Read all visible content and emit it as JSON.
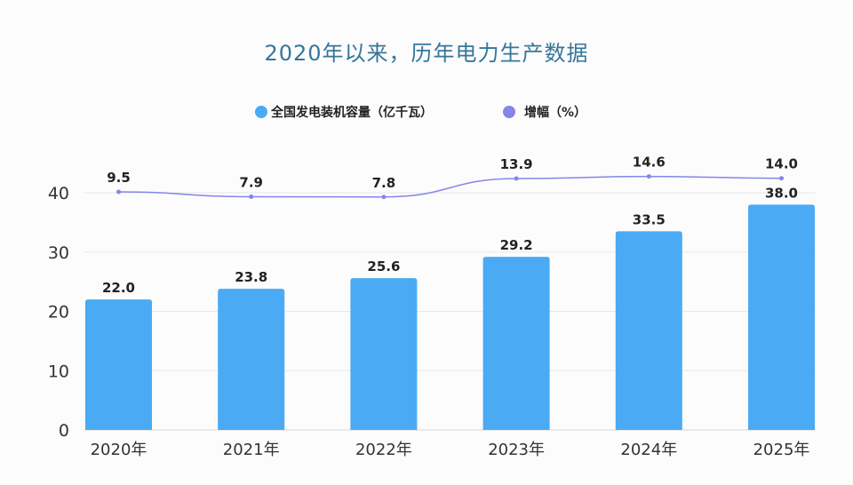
{
  "chart_data": {
    "type": "bar+line",
    "title": "2020年以来，历年电力生产数据",
    "categories": [
      "2020年",
      "2021年",
      "2022年",
      "2023年",
      "2024年",
      "2025年"
    ],
    "series": [
      {
        "name": "全国发电装机容量（亿千瓦）",
        "type": "bar",
        "axis": "left",
        "color": "#4aaaf4",
        "values": [
          22.0,
          23.8,
          25.6,
          29.2,
          33.5,
          38.0
        ],
        "labels": [
          "22.0",
          "23.8",
          "25.6",
          "29.2",
          "33.5",
          "38.0"
        ]
      },
      {
        "name": "增幅（%）",
        "type": "line",
        "axis": "hidden-right",
        "color": "#8585ea",
        "values": [
          9.5,
          7.9,
          7.8,
          13.9,
          14.6,
          14.0
        ],
        "labels": [
          "9.5",
          "7.9",
          "7.8",
          "13.9",
          "14.6",
          "14.0"
        ]
      }
    ],
    "yaxis": {
      "ticks": [
        "0",
        "10",
        "20",
        "30",
        "40"
      ],
      "ylim": [
        0,
        40
      ]
    },
    "grid": true,
    "legend": "top-center"
  }
}
